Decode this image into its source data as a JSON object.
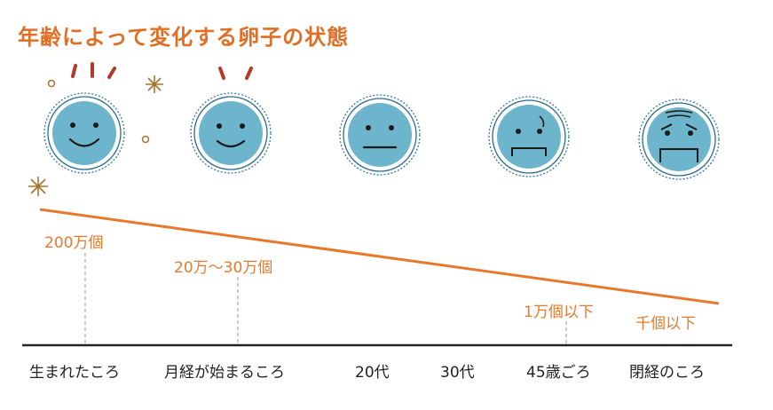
{
  "title": "年齢によって変化する卵子の状態",
  "colors": {
    "accent": "#e8792c",
    "face": "#6db4cd",
    "ring": "#2a6f8a",
    "mark": "#b5392b",
    "axis": "#222222"
  },
  "chart_data": {
    "type": "line",
    "title": "年齢によって変化する卵子の状態",
    "x": [
      "生まれたころ",
      "月経が始まるころ",
      "20代",
      "30代",
      "45歳ごろ",
      "閉経のころ"
    ],
    "annotations": [
      "200万個",
      "20万〜30万個",
      "1万個以下",
      "千個以下"
    ],
    "faces": [
      "very-happy",
      "happy",
      "neutral",
      "worried",
      "distressed"
    ]
  }
}
